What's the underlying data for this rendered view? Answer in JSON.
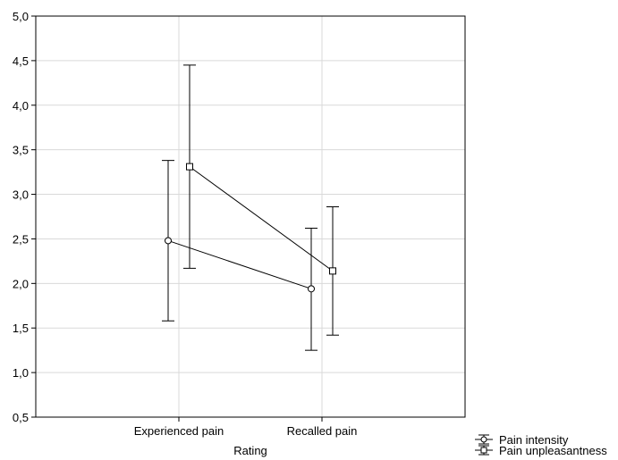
{
  "chart_data": {
    "type": "line",
    "title": "",
    "xlabel": "Rating",
    "ylabel": "",
    "categories": [
      "Experienced pain",
      "Recalled pain"
    ],
    "ylim": [
      0.5,
      5.0
    ],
    "yticks": [
      "0,5",
      "1,0",
      "1,5",
      "2,0",
      "2,5",
      "3,0",
      "3,5",
      "4,0",
      "4,5",
      "5,0"
    ],
    "ytick_values": [
      0.5,
      1.0,
      1.5,
      2.0,
      2.5,
      3.0,
      3.5,
      4.0,
      4.5,
      5.0
    ],
    "grid": true,
    "legend_position": "bottom-right",
    "error_bars": true,
    "series": [
      {
        "name": "Pain intensity",
        "marker": "circle",
        "values": [
          2.48,
          1.94
        ],
        "lower": [
          1.58,
          1.25
        ],
        "upper": [
          3.38,
          2.62
        ]
      },
      {
        "name": "Pain unpleasantness",
        "marker": "square",
        "values": [
          3.31,
          2.14
        ],
        "lower": [
          2.17,
          1.42
        ],
        "upper": [
          4.45,
          2.86
        ]
      }
    ],
    "colors": {
      "line": "#000000",
      "grid": "#d9d9d9",
      "background": "#ffffff"
    }
  }
}
